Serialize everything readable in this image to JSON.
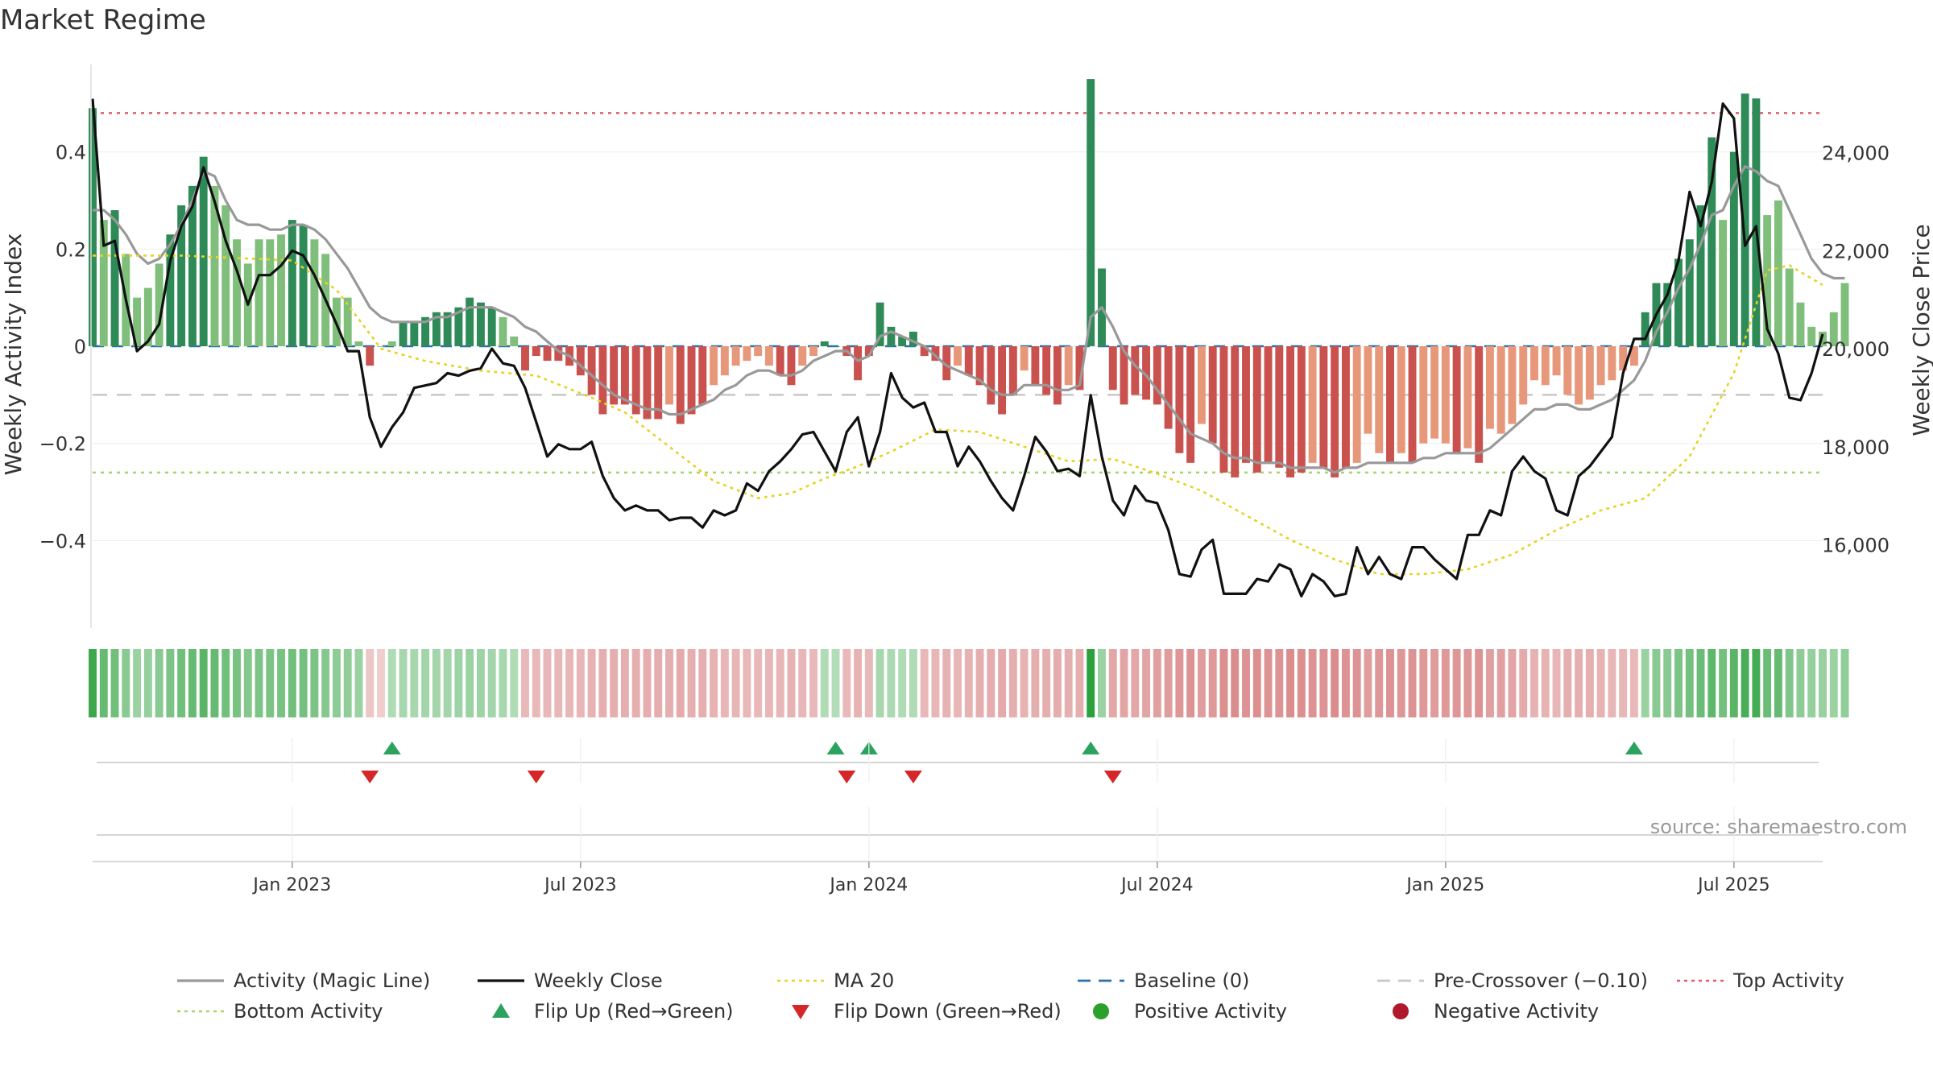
{
  "chart_data": {
    "type": "bar",
    "title": "Market Regime",
    "source": "source: sharemaestro.com",
    "ylabel_left": "Weekly Activity Index",
    "ylabel_right": "Weekly Close Price",
    "y_left_ticks": [
      {
        "v": 0.4,
        "label": "0.4"
      },
      {
        "v": 0.2,
        "label": "0.2"
      },
      {
        "v": 0,
        "label": "0"
      },
      {
        "v": -0.2,
        "label": "−0.2"
      },
      {
        "v": -0.4,
        "label": "−0.4"
      }
    ],
    "y_right_ticks": [
      {
        "v": 24000,
        "label": "24,000"
      },
      {
        "v": 22000,
        "label": "22,000"
      },
      {
        "v": 20000,
        "label": "20,000"
      },
      {
        "v": 18000,
        "label": "18,000"
      },
      {
        "v": 16000,
        "label": "16,000"
      }
    ],
    "x_ticks": [
      {
        "week": 18,
        "label": "Jan 2023"
      },
      {
        "week": 44,
        "label": "Jul 2023"
      },
      {
        "week": 70,
        "label": "Jan 2024"
      },
      {
        "week": 96,
        "label": "Jul 2024"
      },
      {
        "week": 122,
        "label": "Jan 2025"
      },
      {
        "week": 148,
        "label": "Jul 2025"
      }
    ],
    "ylim_left": [
      -0.58,
      0.58
    ],
    "ylim_right": [
      14300,
      25800
    ],
    "reference_lines": {
      "baseline": 0,
      "pre_crossover": -0.1,
      "top_activity": 0.48,
      "bottom_activity": -0.26
    },
    "weeks": 157,
    "activity": [
      0.49,
      0.26,
      0.28,
      0.19,
      0.1,
      0.12,
      0.17,
      0.23,
      0.29,
      0.33,
      0.39,
      0.33,
      0.29,
      0.22,
      0.17,
      0.22,
      0.22,
      0.23,
      0.26,
      0.25,
      0.22,
      0.19,
      0.1,
      0.1,
      0.01,
      -0.04,
      0.0,
      0.01,
      0.05,
      0.05,
      0.06,
      0.07,
      0.07,
      0.08,
      0.1,
      0.09,
      0.08,
      0.06,
      0.02,
      -0.05,
      -0.02,
      -0.03,
      -0.03,
      -0.04,
      -0.06,
      -0.1,
      -0.14,
      -0.12,
      -0.12,
      -0.14,
      -0.15,
      -0.15,
      -0.12,
      -0.16,
      -0.14,
      -0.12,
      -0.08,
      -0.06,
      -0.04,
      -0.03,
      -0.02,
      -0.04,
      -0.06,
      -0.08,
      -0.04,
      -0.02,
      0.01,
      0.0,
      -0.02,
      -0.07,
      -0.02,
      0.09,
      0.04,
      0.02,
      0.03,
      -0.02,
      -0.03,
      -0.07,
      -0.04,
      -0.06,
      -0.08,
      -0.12,
      -0.14,
      -0.1,
      -0.05,
      -0.08,
      -0.1,
      -0.12,
      -0.08,
      -0.09,
      0.55,
      0.16,
      -0.09,
      -0.12,
      -0.1,
      -0.11,
      -0.12,
      -0.17,
      -0.22,
      -0.24,
      -0.16,
      -0.2,
      -0.26,
      -0.27,
      -0.24,
      -0.26,
      -0.24,
      -0.25,
      -0.27,
      -0.26,
      -0.24,
      -0.25,
      -0.27,
      -0.25,
      -0.24,
      -0.18,
      -0.22,
      -0.24,
      -0.22,
      -0.24,
      -0.2,
      -0.19,
      -0.2,
      -0.22,
      -0.21,
      -0.24,
      -0.17,
      -0.18,
      -0.16,
      -0.12,
      -0.07,
      -0.08,
      -0.06,
      -0.1,
      -0.12,
      -0.11,
      -0.08,
      -0.07,
      -0.05,
      -0.04,
      0.07,
      0.13,
      0.13,
      0.18,
      0.22,
      0.29,
      0.43,
      0.26,
      0.4,
      0.52,
      0.51,
      0.27,
      0.3,
      0.16,
      0.09,
      0.04,
      0.03,
      0.07,
      0.13
    ],
    "magic_line": [
      0.28,
      0.28,
      0.26,
      0.23,
      0.19,
      0.17,
      0.18,
      0.21,
      0.25,
      0.3,
      0.36,
      0.35,
      0.3,
      0.26,
      0.25,
      0.25,
      0.24,
      0.24,
      0.25,
      0.25,
      0.24,
      0.22,
      0.19,
      0.16,
      0.12,
      0.08,
      0.06,
      0.05,
      0.05,
      0.05,
      0.05,
      0.06,
      0.06,
      0.07,
      0.08,
      0.08,
      0.08,
      0.07,
      0.06,
      0.04,
      0.03,
      0.01,
      -0.01,
      -0.02,
      -0.04,
      -0.06,
      -0.08,
      -0.1,
      -0.11,
      -0.12,
      -0.13,
      -0.13,
      -0.14,
      -0.14,
      -0.13,
      -0.12,
      -0.11,
      -0.09,
      -0.08,
      -0.06,
      -0.05,
      -0.05,
      -0.06,
      -0.06,
      -0.05,
      -0.03,
      -0.02,
      -0.01,
      -0.01,
      -0.03,
      -0.02,
      0.02,
      0.03,
      0.02,
      0.01,
      0.0,
      -0.02,
      -0.04,
      -0.05,
      -0.06,
      -0.07,
      -0.09,
      -0.1,
      -0.1,
      -0.08,
      -0.08,
      -0.08,
      -0.09,
      -0.09,
      -0.08,
      0.06,
      0.08,
      0.04,
      -0.01,
      -0.04,
      -0.06,
      -0.09,
      -0.12,
      -0.15,
      -0.18,
      -0.19,
      -0.2,
      -0.22,
      -0.23,
      -0.23,
      -0.24,
      -0.24,
      -0.24,
      -0.25,
      -0.25,
      -0.25,
      -0.25,
      -0.26,
      -0.25,
      -0.25,
      -0.24,
      -0.24,
      -0.24,
      -0.24,
      -0.24,
      -0.23,
      -0.23,
      -0.22,
      -0.22,
      -0.22,
      -0.22,
      -0.21,
      -0.19,
      -0.17,
      -0.15,
      -0.13,
      -0.13,
      -0.12,
      -0.12,
      -0.13,
      -0.13,
      -0.12,
      -0.11,
      -0.09,
      -0.07,
      -0.03,
      0.03,
      0.07,
      0.12,
      0.16,
      0.21,
      0.27,
      0.28,
      0.33,
      0.37,
      0.36,
      0.34,
      0.33,
      0.28,
      0.23,
      0.18,
      0.15,
      0.14,
      0.14
    ],
    "weekly_close": [
      25100,
      22100,
      22200,
      21000,
      19950,
      20150,
      20500,
      21800,
      22500,
      22900,
      23700,
      23000,
      22200,
      21600,
      20900,
      21500,
      21500,
      21700,
      22000,
      21900,
      21500,
      21000,
      20500,
      19950,
      19950,
      18600,
      18000,
      18400,
      18700,
      19200,
      19250,
      19300,
      19500,
      19450,
      19550,
      19600,
      20000,
      19700,
      19650,
      19200,
      18500,
      17800,
      18050,
      17950,
      17950,
      18100,
      17400,
      16950,
      16700,
      16800,
      16700,
      16700,
      16500,
      16550,
      16550,
      16350,
      16700,
      16600,
      16700,
      17250,
      17100,
      17500,
      17700,
      17950,
      18250,
      18300,
      17900,
      17500,
      18300,
      18600,
      17600,
      18300,
      19500,
      19000,
      18800,
      18900,
      18300,
      18300,
      17600,
      18000,
      17700,
      17300,
      16950,
      16700,
      17400,
      18200,
      17900,
      17500,
      17550,
      17400,
      19050,
      17800,
      16900,
      16600,
      17200,
      16900,
      16850,
      16300,
      15400,
      15350,
      15900,
      16100,
      15000,
      15000,
      15000,
      15300,
      15250,
      15600,
      15500,
      14950,
      15400,
      15250,
      14950,
      15000,
      15950,
      15400,
      15750,
      15400,
      15300,
      15950,
      15950,
      15700,
      15500,
      15300,
      16200,
      16200,
      16700,
      16600,
      17500,
      17800,
      17500,
      17350,
      16700,
      16600,
      17400,
      17600,
      17900,
      18200,
      19500,
      20200,
      20200,
      20700,
      21100,
      21800,
      23200,
      22500,
      23400,
      25000,
      24700,
      22100,
      22500,
      20400,
      19900,
      19000,
      18950,
      19500,
      20300
    ],
    "ma20_points": [
      [
        0,
        21900
      ],
      [
        8,
        21900
      ],
      [
        18,
        21800
      ],
      [
        22,
        21200
      ],
      [
        26,
        20000
      ],
      [
        30,
        19750
      ],
      [
        35,
        19550
      ],
      [
        40,
        19450
      ],
      [
        45,
        19000
      ],
      [
        48,
        18700
      ],
      [
        52,
        18000
      ],
      [
        56,
        17300
      ],
      [
        60,
        16950
      ],
      [
        63,
        17050
      ],
      [
        66,
        17350
      ],
      [
        69,
        17600
      ],
      [
        72,
        17900
      ],
      [
        76,
        18350
      ],
      [
        80,
        18300
      ],
      [
        84,
        18000
      ],
      [
        88,
        17700
      ],
      [
        92,
        17750
      ],
      [
        96,
        17450
      ],
      [
        100,
        17100
      ],
      [
        104,
        16600
      ],
      [
        108,
        16100
      ],
      [
        112,
        15700
      ],
      [
        116,
        15400
      ],
      [
        120,
        15400
      ],
      [
        124,
        15500
      ],
      [
        128,
        15800
      ],
      [
        132,
        16300
      ],
      [
        136,
        16700
      ],
      [
        140,
        16950
      ],
      [
        144,
        17800
      ],
      [
        148,
        19500
      ],
      [
        151,
        21600
      ],
      [
        153,
        21700
      ],
      [
        156,
        21300
      ]
    ],
    "regime_strip": [
      0.9,
      0.65,
      0.6,
      0.45,
      0.35,
      0.38,
      0.45,
      0.52,
      0.6,
      0.65,
      0.72,
      0.65,
      0.6,
      0.55,
      0.48,
      0.52,
      0.52,
      0.55,
      0.6,
      0.58,
      0.52,
      0.48,
      0.42,
      0.4,
      0.35,
      -0.15,
      -0.1,
      0.22,
      0.28,
      0.28,
      0.3,
      0.3,
      0.3,
      0.32,
      0.35,
      0.32,
      0.3,
      0.28,
      0.22,
      -0.25,
      -0.25,
      -0.26,
      -0.26,
      -0.27,
      -0.28,
      -0.3,
      -0.33,
      -0.32,
      -0.32,
      -0.33,
      -0.34,
      -0.34,
      -0.32,
      -0.35,
      -0.33,
      -0.32,
      -0.3,
      -0.28,
      -0.27,
      -0.26,
      -0.25,
      -0.27,
      -0.28,
      -0.3,
      -0.27,
      -0.25,
      0.22,
      0.2,
      -0.25,
      -0.3,
      -0.25,
      0.28,
      0.25,
      0.22,
      0.23,
      -0.26,
      -0.28,
      -0.3,
      -0.28,
      -0.3,
      -0.32,
      -0.34,
      -0.35,
      -0.33,
      -0.3,
      -0.32,
      -0.33,
      -0.34,
      -0.32,
      -0.33,
      1.0,
      0.35,
      -0.38,
      -0.4,
      -0.38,
      -0.4,
      -0.42,
      -0.45,
      -0.5,
      -0.52,
      -0.45,
      -0.48,
      -0.55,
      -0.56,
      -0.52,
      -0.55,
      -0.52,
      -0.53,
      -0.56,
      -0.55,
      -0.52,
      -0.53,
      -0.56,
      -0.53,
      -0.52,
      -0.45,
      -0.5,
      -0.52,
      -0.5,
      -0.52,
      -0.48,
      -0.46,
      -0.48,
      -0.5,
      -0.49,
      -0.52,
      -0.42,
      -0.44,
      -0.4,
      -0.35,
      -0.3,
      -0.3,
      -0.28,
      -0.32,
      -0.33,
      -0.32,
      -0.3,
      -0.28,
      -0.26,
      -0.25,
      0.35,
      0.45,
      0.45,
      0.52,
      0.58,
      0.62,
      0.7,
      0.58,
      0.72,
      0.82,
      0.85,
      0.62,
      0.65,
      0.5,
      0.42,
      0.38,
      0.36,
      0.35,
      0.4
    ],
    "flip_up_weeks": [
      27,
      67,
      70,
      90,
      139
    ],
    "flip_down_weeks": [
      25,
      40,
      68,
      74,
      92
    ],
    "legend": [
      {
        "label": "Activity (Magic Line)",
        "symbol": "line",
        "color": "#999999"
      },
      {
        "label": "Weekly Close",
        "symbol": "line",
        "color": "#111111"
      },
      {
        "label": "MA 20",
        "symbol": "dotted",
        "color": "#e6d327"
      },
      {
        "label": "Baseline (0)",
        "symbol": "dashed",
        "color": "#2f6fa8"
      },
      {
        "label": "Pre-Crossover (−0.10)",
        "symbol": "dashed",
        "color": "#c8c8c8"
      },
      {
        "label": "Top Activity",
        "symbol": "dotted",
        "color": "#e05c6c"
      },
      {
        "label": "Bottom Activity",
        "symbol": "dotted",
        "color": "#a9d46a"
      },
      {
        "label": "Flip Up (Red→Green)",
        "symbol": "tri-up",
        "color": "#2ca25f"
      },
      {
        "label": "Flip Down (Green→Red)",
        "symbol": "tri-down",
        "color": "#d62728"
      },
      {
        "label": "Positive Activity",
        "symbol": "dot",
        "color": "#2ca02c"
      },
      {
        "label": "Negative Activity",
        "symbol": "dot",
        "color": "#b2182b"
      }
    ],
    "colors": {
      "pos_strong": "#2e8b57",
      "pos_light": "#7fbf7b",
      "neg_strong": "#c9524f",
      "neg_light": "#e8987a",
      "magic": "#999999",
      "close": "#111111",
      "ma20": "#e6d327",
      "baseline": "#2f6fa8",
      "pre": "#c8c8c8",
      "top": "#e05c6c",
      "bottom": "#a9d46a",
      "flip_up": "#2ca25f",
      "flip_down": "#d62728"
    }
  }
}
